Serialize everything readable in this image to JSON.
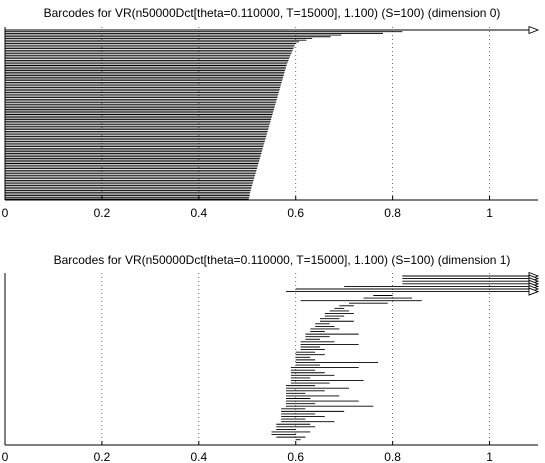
{
  "chart_data": [
    {
      "type": "barcode",
      "title": "Barcodes for VR(n50000Dct[theta=0.110000, T=15000], 1.100) (S=100) (dimension 0)",
      "xlabel": "",
      "ylabel": "",
      "xlim": [
        0,
        1.1
      ],
      "xticks": [
        0,
        0.2,
        0.4,
        0.6,
        0.8,
        1
      ],
      "xtick_labels": [
        "0",
        "0.2",
        "0.4",
        "0.6",
        "0.8",
        "1"
      ],
      "grid": "vertical dotted",
      "bar_count": 100,
      "bar_start": 0,
      "infinite_bars": [
        {
          "start": 0
        }
      ],
      "bar_deaths": [
        0.82,
        0.78,
        0.694,
        0.672,
        0.634,
        0.622,
        0.607,
        0.601,
        0.598,
        0.597,
        0.595,
        0.594,
        0.592,
        0.591,
        0.589,
        0.588,
        0.586,
        0.585,
        0.584,
        0.582,
        0.581,
        0.58,
        0.579,
        0.578,
        0.577,
        0.576,
        0.575,
        0.574,
        0.573,
        0.572,
        0.571,
        0.57,
        0.569,
        0.568,
        0.567,
        0.566,
        0.565,
        0.564,
        0.563,
        0.562,
        0.561,
        0.56,
        0.559,
        0.558,
        0.557,
        0.556,
        0.555,
        0.554,
        0.553,
        0.552,
        0.551,
        0.55,
        0.549,
        0.548,
        0.547,
        0.546,
        0.545,
        0.544,
        0.543,
        0.542,
        0.541,
        0.54,
        0.539,
        0.538,
        0.537,
        0.536,
        0.535,
        0.534,
        0.533,
        0.532,
        0.531,
        0.53,
        0.529,
        0.528,
        0.527,
        0.526,
        0.525,
        0.524,
        0.523,
        0.522,
        0.521,
        0.52,
        0.519,
        0.518,
        0.517,
        0.516,
        0.515,
        0.514,
        0.513,
        0.512,
        0.511,
        0.51,
        0.509,
        0.508,
        0.507,
        0.506,
        0.505,
        0.505,
        0.504,
        0.503
      ]
    },
    {
      "type": "barcode",
      "title": "Barcodes for VR(n50000Dct[theta=0.110000, T=15000], 1.100) (S=100) (dimension 1)",
      "xlabel": "",
      "ylabel": "",
      "xlim": [
        0,
        1.1
      ],
      "xticks": [
        0,
        0.2,
        0.4,
        0.6,
        0.8,
        1
      ],
      "xtick_labels": [
        "0",
        "0.2",
        "0.4",
        "0.6",
        "0.8",
        "1"
      ],
      "grid": "vertical dotted",
      "bar_count": 64,
      "infinite_bars": [
        {
          "start": 0.82
        },
        {
          "start": 0.82
        },
        {
          "start": 0.82
        },
        {
          "start": 0.82
        },
        {
          "start": 0.7
        },
        {
          "start": 0.6
        },
        {
          "start": 0.58
        }
      ],
      "bars": [
        [
          0.76,
          0.8
        ],
        [
          0.74,
          0.84
        ],
        [
          0.61,
          0.86
        ],
        [
          0.71,
          0.79
        ],
        [
          0.69,
          0.72
        ],
        [
          0.68,
          0.7
        ],
        [
          0.67,
          0.71
        ],
        [
          0.66,
          0.72
        ],
        [
          0.66,
          0.7
        ],
        [
          0.65,
          0.69
        ],
        [
          0.65,
          0.72
        ],
        [
          0.64,
          0.67
        ],
        [
          0.64,
          0.68
        ],
        [
          0.63,
          0.69
        ],
        [
          0.63,
          0.66
        ],
        [
          0.62,
          0.73
        ],
        [
          0.62,
          0.67
        ],
        [
          0.62,
          0.65
        ],
        [
          0.61,
          0.68
        ],
        [
          0.61,
          0.73
        ],
        [
          0.61,
          0.65
        ],
        [
          0.61,
          0.66
        ],
        [
          0.6,
          0.64
        ],
        [
          0.6,
          0.66
        ],
        [
          0.6,
          0.63
        ],
        [
          0.6,
          0.64
        ],
        [
          0.6,
          0.77
        ],
        [
          0.6,
          0.65
        ],
        [
          0.59,
          0.73
        ],
        [
          0.59,
          0.64
        ],
        [
          0.59,
          0.66
        ],
        [
          0.59,
          0.68
        ],
        [
          0.59,
          0.63
        ],
        [
          0.59,
          0.74
        ],
        [
          0.59,
          0.67
        ],
        [
          0.58,
          0.64
        ],
        [
          0.58,
          0.71
        ],
        [
          0.58,
          0.66
        ],
        [
          0.58,
          0.62
        ],
        [
          0.58,
          0.69
        ],
        [
          0.58,
          0.63
        ],
        [
          0.58,
          0.73
        ],
        [
          0.58,
          0.64
        ],
        [
          0.58,
          0.76
        ],
        [
          0.57,
          0.62
        ],
        [
          0.57,
          0.7
        ],
        [
          0.57,
          0.64
        ],
        [
          0.57,
          0.66
        ],
        [
          0.57,
          0.62
        ],
        [
          0.57,
          0.68
        ],
        [
          0.56,
          0.63
        ],
        [
          0.56,
          0.64
        ],
        [
          0.56,
          0.6
        ],
        [
          0.55,
          0.63
        ],
        [
          0.55,
          0.6
        ],
        [
          0.56,
          0.62
        ],
        [
          0.6,
          0.61
        ]
      ]
    }
  ]
}
